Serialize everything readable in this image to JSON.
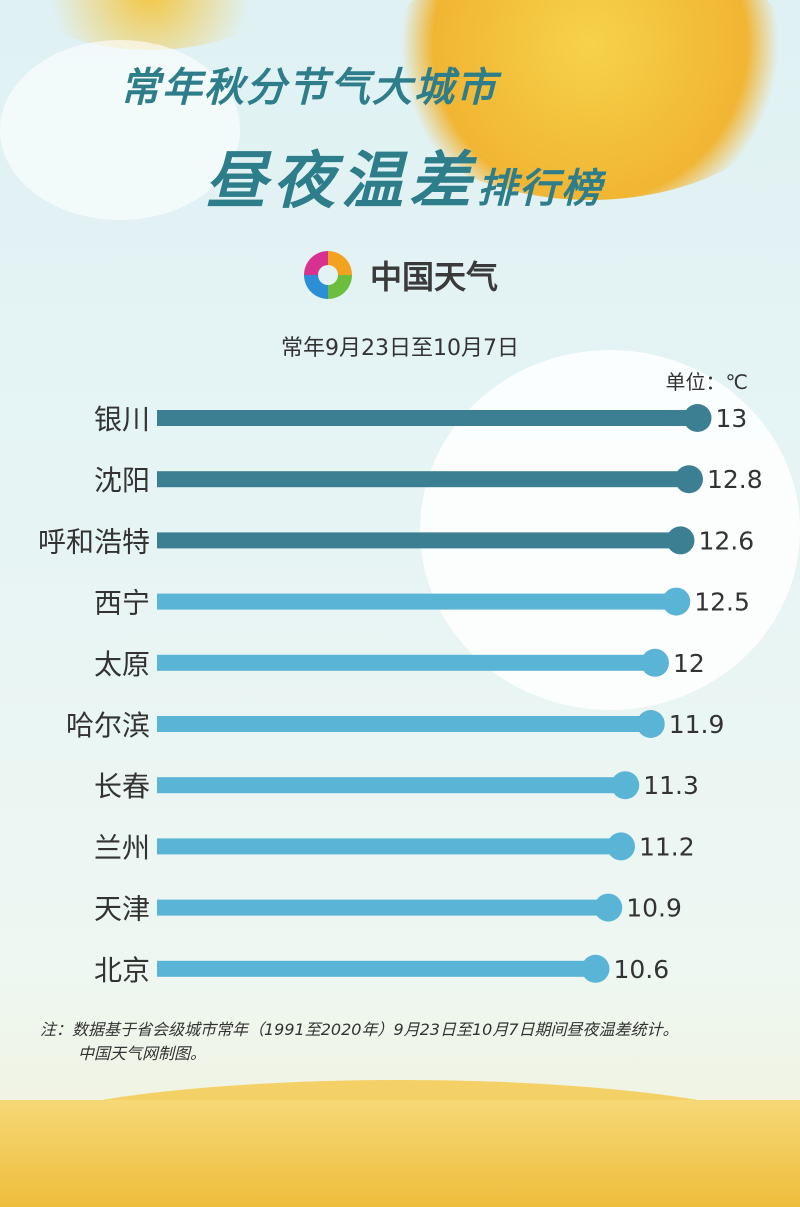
{
  "header": {
    "title_line1": "常年秋分节气大城市",
    "title_line2_main": "昼夜温差",
    "title_line2_suffix": "排行榜",
    "logo_text": "中国天气",
    "subtitle": "常年9月23日至10月7日",
    "unit": "单位：℃"
  },
  "chart_data": {
    "type": "bar",
    "orientation": "horizontal",
    "categories": [
      "银川",
      "沈阳",
      "呼和浩特",
      "西宁",
      "太原",
      "哈尔滨",
      "长春",
      "兰州",
      "天津",
      "北京"
    ],
    "values": [
      13,
      12.8,
      12.6,
      12.5,
      12,
      11.9,
      11.3,
      11.2,
      10.9,
      10.6
    ],
    "value_labels": [
      "13",
      "12.8",
      "12.6",
      "12.5",
      "12",
      "11.9",
      "11.3",
      "11.2",
      "10.9",
      "10.6"
    ],
    "ylabel": "单位：℃",
    "colors": {
      "top3": "#3d7f92",
      "rest": "#5ab4d6"
    },
    "grid": false
  },
  "footer": {
    "note_line1": "注：数据基于省会级城市常年（1991至2020年）9月23日至10月7日期间昼夜温差统计。",
    "note_line2": "中国天气网制图。"
  }
}
